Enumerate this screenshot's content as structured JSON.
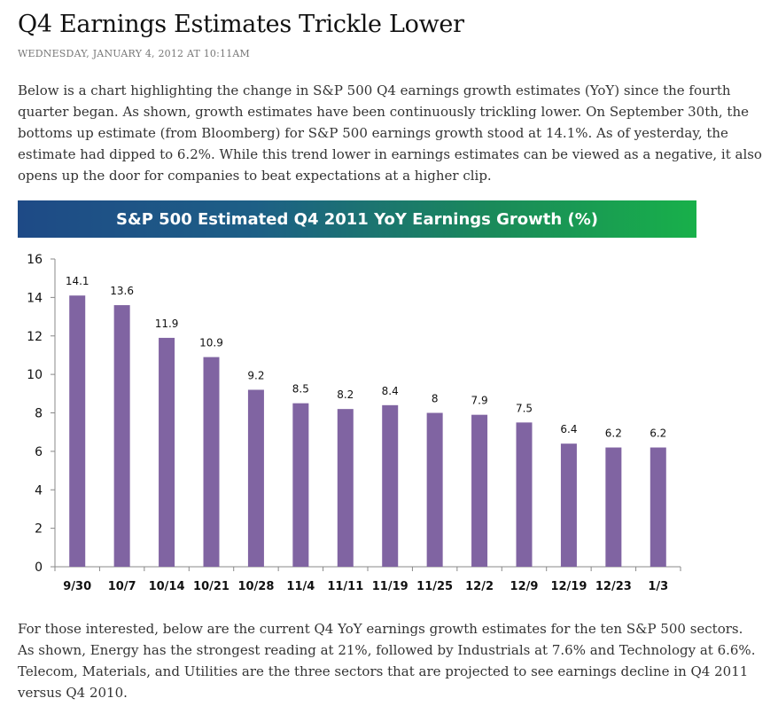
{
  "article": {
    "title": "Q4 Earnings Estimates Trickle Lower",
    "dateline": "WEDNESDAY, JANUARY 4, 2012 AT 10:11AM",
    "paragraph1": "Below is a chart highlighting the change in S&P 500 Q4 earnings growth estimates (YoY) since the fourth quarter began.  As shown, growth estimates have been continuously trickling lower.  On September 30th, the bottoms up estimate (from Bloomberg) for S&P 500 earnings growth stood at 14.1%.  As of yesterday, the estimate had dipped to 6.2%.  While this trend lower in earnings estimates can be viewed as a negative, it also opens up the door for companies to beat expectations at a higher clip.",
    "paragraph2": "For those interested, below are the current Q4 YoY earnings growth estimates for the ten S&P 500 sectors.  As shown, Energy has the strongest reading at 21%, followed by Industrials at 7.6% and Technology at 6.6%.  Telecom, Materials, and Utilities are the three sectors that are projected to see earnings decline in Q4 2011 versus Q4 2010."
  },
  "colors": {
    "bar": "#8064a2",
    "axis": "#888888"
  },
  "chart_data": {
    "type": "bar",
    "title": "S&P 500 Estimated Q4 2011 YoY Earnings Growth (%)",
    "xlabel": "",
    "ylabel": "",
    "ylim": [
      0,
      16
    ],
    "yticks": [
      0,
      2,
      4,
      6,
      8,
      10,
      12,
      14,
      16
    ],
    "categories": [
      "9/30",
      "10/7",
      "10/14",
      "10/21",
      "10/28",
      "11/4",
      "11/11",
      "11/19",
      "11/25",
      "12/2",
      "12/9",
      "12/19",
      "12/23",
      "1/3"
    ],
    "values": [
      14.1,
      13.6,
      11.9,
      10.9,
      9.2,
      8.5,
      8.2,
      8.4,
      8,
      7.9,
      7.5,
      6.4,
      6.2,
      6.2
    ],
    "data_labels": [
      "14.1",
      "13.6",
      "11.9",
      "10.9",
      "9.2",
      "8.5",
      "8.2",
      "8.4",
      "8",
      "7.9",
      "7.5",
      "6.4",
      "6.2",
      "6.2"
    ],
    "grid": false,
    "legend": "none"
  }
}
